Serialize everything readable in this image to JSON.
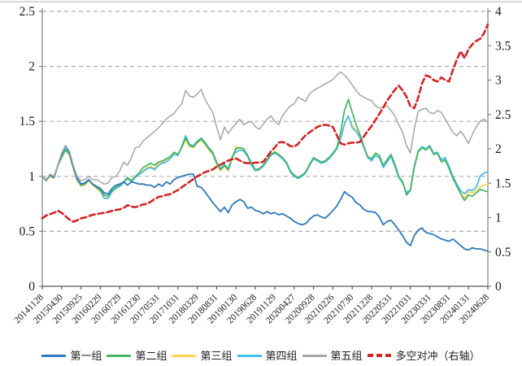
{
  "page": {
    "background": "#ffffff",
    "top_border_color": "#d8d8d8"
  },
  "chart_data": {
    "type": "line",
    "title": "",
    "xlabel": "",
    "ylabel_left": "",
    "ylabel_right": "",
    "x_axis": {
      "labels": [
        "20141128",
        "20150430",
        "20150925",
        "20160229",
        "20160729",
        "20161230",
        "20170531",
        "20171031",
        "20180329",
        "20180831",
        "20190130",
        "20190628",
        "20191129",
        "20200427",
        "20200928",
        "20210226",
        "20210730",
        "20211228",
        "20220531",
        "20221031",
        "20230331",
        "20230831",
        "20240131",
        "20240628"
      ],
      "label_month_positions": [
        0,
        5,
        10,
        15,
        20,
        25,
        30,
        35,
        40,
        45,
        50,
        55,
        60,
        65,
        70,
        75,
        80,
        85,
        90,
        95,
        100,
        105,
        110,
        115
      ],
      "months_total": 115
    },
    "y_left": {
      "min": 0,
      "max": 2.5,
      "tick_step": 0.5,
      "ticks": [
        "0",
        "0.5",
        "1",
        "1.5",
        "2",
        "2.5"
      ]
    },
    "y_right": {
      "min": 0,
      "max": 4,
      "tick_step": 0.5,
      "ticks": [
        "0",
        "0.5",
        "1",
        "1.5",
        "2",
        "2.5",
        "3",
        "3.5",
        "4"
      ]
    },
    "grid": {
      "on": true,
      "color": "#aeaeae",
      "dash": "5 4",
      "at_left_values": [
        0.5,
        1,
        1.5,
        2,
        2.5
      ]
    },
    "axis_color": "#7f7f7f",
    "legend_position": "bottom",
    "series": [
      {
        "name": "第一组",
        "color": "#2e79c0",
        "axis": "left",
        "dash": null,
        "width": 1.8,
        "values": [
          1.0,
          0.97,
          1.01,
          0.99,
          1.1,
          1.2,
          1.28,
          1.22,
          1.09,
          0.98,
          0.93,
          0.94,
          0.97,
          0.93,
          0.91,
          0.89,
          0.85,
          0.84,
          0.89,
          0.92,
          0.93,
          0.95,
          0.92,
          0.95,
          0.94,
          0.93,
          0.93,
          0.92,
          0.92,
          0.9,
          0.93,
          0.91,
          0.95,
          0.93,
          0.97,
          0.99,
          1.0,
          1.01,
          1.02,
          1.02,
          0.91,
          0.9,
          0.86,
          0.81,
          0.76,
          0.72,
          0.68,
          0.72,
          0.67,
          0.74,
          0.77,
          0.79,
          0.77,
          0.71,
          0.72,
          0.69,
          0.68,
          0.66,
          0.68,
          0.66,
          0.67,
          0.65,
          0.66,
          0.64,
          0.62,
          0.59,
          0.57,
          0.56,
          0.57,
          0.61,
          0.64,
          0.65,
          0.63,
          0.62,
          0.65,
          0.69,
          0.73,
          0.79,
          0.86,
          0.83,
          0.81,
          0.76,
          0.74,
          0.7,
          0.68,
          0.68,
          0.67,
          0.63,
          0.56,
          0.59,
          0.6,
          0.56,
          0.51,
          0.46,
          0.4,
          0.37,
          0.46,
          0.51,
          0.53,
          0.49,
          0.48,
          0.47,
          0.45,
          0.43,
          0.42,
          0.41,
          0.43,
          0.4,
          0.37,
          0.34,
          0.33,
          0.35,
          0.34,
          0.34,
          0.33,
          0.32
        ]
      },
      {
        "name": "第二组",
        "color": "#45b363",
        "axis": "left",
        "dash": null,
        "width": 1.7,
        "values": [
          1.0,
          0.96,
          1.01,
          0.99,
          1.1,
          1.17,
          1.24,
          1.2,
          1.08,
          0.97,
          0.92,
          0.93,
          0.97,
          0.93,
          0.9,
          0.87,
          0.83,
          0.82,
          0.87,
          0.9,
          0.92,
          0.95,
          0.99,
          0.96,
          1.0,
          1.03,
          1.08,
          1.1,
          1.12,
          1.1,
          1.13,
          1.14,
          1.16,
          1.18,
          1.22,
          1.2,
          1.26,
          1.35,
          1.28,
          1.27,
          1.31,
          1.34,
          1.3,
          1.25,
          1.21,
          1.12,
          1.06,
          1.1,
          1.06,
          1.17,
          1.25,
          1.26,
          1.25,
          1.19,
          1.12,
          1.06,
          1.07,
          1.1,
          1.15,
          1.2,
          1.22,
          1.2,
          1.17,
          1.13,
          1.05,
          1.01,
          0.99,
          1.01,
          1.04,
          1.11,
          1.17,
          1.15,
          1.13,
          1.14,
          1.17,
          1.21,
          1.26,
          1.4,
          1.6,
          1.7,
          1.58,
          1.47,
          1.38,
          1.27,
          1.18,
          1.16,
          1.21,
          1.19,
          1.1,
          1.15,
          1.2,
          1.11,
          1.0,
          0.95,
          0.83,
          0.87,
          1.08,
          1.22,
          1.26,
          1.24,
          1.27,
          1.2,
          1.21,
          1.13,
          1.15,
          1.07,
          0.98,
          0.91,
          0.84,
          0.78,
          0.83,
          0.82,
          0.85,
          0.88,
          0.87,
          0.86
        ]
      },
      {
        "name": "第三组",
        "color": "#ffd34d",
        "axis": "left",
        "dash": null,
        "width": 1.7,
        "values": [
          1.0,
          0.96,
          1.0,
          0.98,
          1.09,
          1.18,
          1.24,
          1.19,
          1.07,
          0.96,
          0.91,
          0.92,
          0.96,
          0.92,
          0.89,
          0.86,
          0.81,
          0.8,
          0.86,
          0.89,
          0.91,
          0.94,
          0.98,
          0.95,
          0.99,
          1.02,
          1.05,
          1.08,
          1.09,
          1.07,
          1.12,
          1.13,
          1.15,
          1.17,
          1.21,
          1.19,
          1.26,
          1.33,
          1.27,
          1.26,
          1.3,
          1.33,
          1.29,
          1.24,
          1.2,
          1.11,
          1.05,
          1.09,
          1.05,
          1.16,
          1.27,
          1.26,
          1.24,
          1.18,
          1.11,
          1.05,
          1.06,
          1.09,
          1.14,
          1.19,
          1.23,
          1.2,
          1.16,
          1.12,
          1.04,
          1.0,
          0.98,
          1.0,
          1.03,
          1.1,
          1.16,
          1.14,
          1.12,
          1.13,
          1.16,
          1.2,
          1.25,
          1.33,
          1.47,
          1.55,
          1.46,
          1.42,
          1.36,
          1.27,
          1.18,
          1.16,
          1.21,
          1.19,
          1.1,
          1.15,
          1.2,
          1.11,
          1.0,
          0.95,
          0.84,
          0.87,
          1.08,
          1.22,
          1.26,
          1.24,
          1.27,
          1.2,
          1.21,
          1.14,
          1.16,
          1.07,
          0.98,
          0.91,
          0.85,
          0.8,
          0.86,
          0.85,
          0.87,
          0.9,
          0.92,
          0.93
        ]
      },
      {
        "name": "第四组",
        "color": "#41bef0",
        "axis": "left",
        "dash": null,
        "width": 1.7,
        "values": [
          1.0,
          0.96,
          1.01,
          0.99,
          1.1,
          1.19,
          1.26,
          1.21,
          1.08,
          0.97,
          0.92,
          0.93,
          0.97,
          0.93,
          0.9,
          0.87,
          0.8,
          0.8,
          0.86,
          0.89,
          0.91,
          0.94,
          0.98,
          0.95,
          0.99,
          1.02,
          1.04,
          1.07,
          1.08,
          1.06,
          1.1,
          1.12,
          1.13,
          1.16,
          1.2,
          1.19,
          1.27,
          1.37,
          1.29,
          1.28,
          1.32,
          1.35,
          1.31,
          1.26,
          1.22,
          1.13,
          1.07,
          1.11,
          1.07,
          1.18,
          1.22,
          1.24,
          1.23,
          1.18,
          1.1,
          1.05,
          1.06,
          1.09,
          1.14,
          1.19,
          1.21,
          1.19,
          1.16,
          1.12,
          1.04,
          1.0,
          0.98,
          1.0,
          1.03,
          1.1,
          1.16,
          1.14,
          1.12,
          1.13,
          1.16,
          1.2,
          1.25,
          1.34,
          1.48,
          1.55,
          1.44,
          1.41,
          1.35,
          1.26,
          1.17,
          1.14,
          1.19,
          1.17,
          1.08,
          1.13,
          1.18,
          1.09,
          0.99,
          0.94,
          0.85,
          0.88,
          1.09,
          1.23,
          1.27,
          1.25,
          1.28,
          1.21,
          1.22,
          1.15,
          1.17,
          1.09,
          1.0,
          0.93,
          0.87,
          0.84,
          0.88,
          0.87,
          0.9,
          1.0,
          1.03,
          1.04
        ]
      },
      {
        "name": "第五组",
        "color": "#a6a6a6",
        "axis": "left",
        "dash": null,
        "width": 1.5,
        "values": [
          1.0,
          0.97,
          1.02,
          1.0,
          1.1,
          1.21,
          1.28,
          1.23,
          1.1,
          1.0,
          0.96,
          0.97,
          1.0,
          0.97,
          0.97,
          0.95,
          0.93,
          0.94,
          0.99,
          1.0,
          1.05,
          1.13,
          1.1,
          1.17,
          1.26,
          1.27,
          1.32,
          1.35,
          1.38,
          1.41,
          1.44,
          1.48,
          1.52,
          1.55,
          1.57,
          1.62,
          1.66,
          1.78,
          1.73,
          1.72,
          1.75,
          1.79,
          1.7,
          1.64,
          1.58,
          1.45,
          1.33,
          1.45,
          1.39,
          1.44,
          1.48,
          1.52,
          1.47,
          1.49,
          1.5,
          1.45,
          1.43,
          1.47,
          1.52,
          1.55,
          1.5,
          1.47,
          1.55,
          1.6,
          1.64,
          1.66,
          1.72,
          1.7,
          1.68,
          1.75,
          1.78,
          1.8,
          1.82,
          1.84,
          1.86,
          1.88,
          1.92,
          1.95,
          1.92,
          1.88,
          1.83,
          1.78,
          1.74,
          1.72,
          1.7,
          1.69,
          1.64,
          1.62,
          1.63,
          1.64,
          1.6,
          1.55,
          1.47,
          1.4,
          1.28,
          1.21,
          1.43,
          1.59,
          1.61,
          1.62,
          1.58,
          1.57,
          1.6,
          1.58,
          1.52,
          1.46,
          1.4,
          1.37,
          1.41,
          1.36,
          1.3,
          1.38,
          1.45,
          1.5,
          1.52,
          1.49
        ]
      },
      {
        "name": "多空对冲（右轴）",
        "color": "#d62424",
        "axis": "right",
        "dash": "7 4",
        "width": 2.6,
        "values": [
          0.99,
          1.03,
          1.05,
          1.07,
          1.1,
          1.07,
          1.02,
          0.97,
          0.94,
          0.96,
          0.99,
          1.0,
          1.02,
          1.04,
          1.05,
          1.06,
          1.07,
          1.08,
          1.1,
          1.11,
          1.12,
          1.14,
          1.18,
          1.16,
          1.15,
          1.17,
          1.19,
          1.2,
          1.23,
          1.27,
          1.3,
          1.31,
          1.33,
          1.34,
          1.37,
          1.4,
          1.44,
          1.48,
          1.52,
          1.56,
          1.6,
          1.63,
          1.66,
          1.68,
          1.7,
          1.74,
          1.77,
          1.8,
          1.83,
          1.85,
          1.86,
          1.83,
          1.8,
          1.79,
          1.79,
          1.8,
          1.8,
          1.81,
          1.88,
          1.96,
          2.02,
          2.09,
          2.1,
          2.08,
          2.04,
          2.03,
          2.07,
          2.14,
          2.2,
          2.24,
          2.28,
          2.32,
          2.34,
          2.35,
          2.34,
          2.32,
          2.2,
          2.08,
          2.06,
          2.08,
          2.09,
          2.09,
          2.1,
          2.18,
          2.26,
          2.33,
          2.42,
          2.51,
          2.6,
          2.7,
          2.78,
          2.86,
          2.92,
          2.85,
          2.76,
          2.62,
          2.59,
          2.74,
          2.95,
          3.07,
          3.05,
          3.0,
          2.98,
          3.04,
          3.0,
          2.98,
          3.15,
          3.3,
          3.42,
          3.32,
          3.45,
          3.52,
          3.57,
          3.6,
          3.68,
          3.81
        ]
      }
    ]
  }
}
